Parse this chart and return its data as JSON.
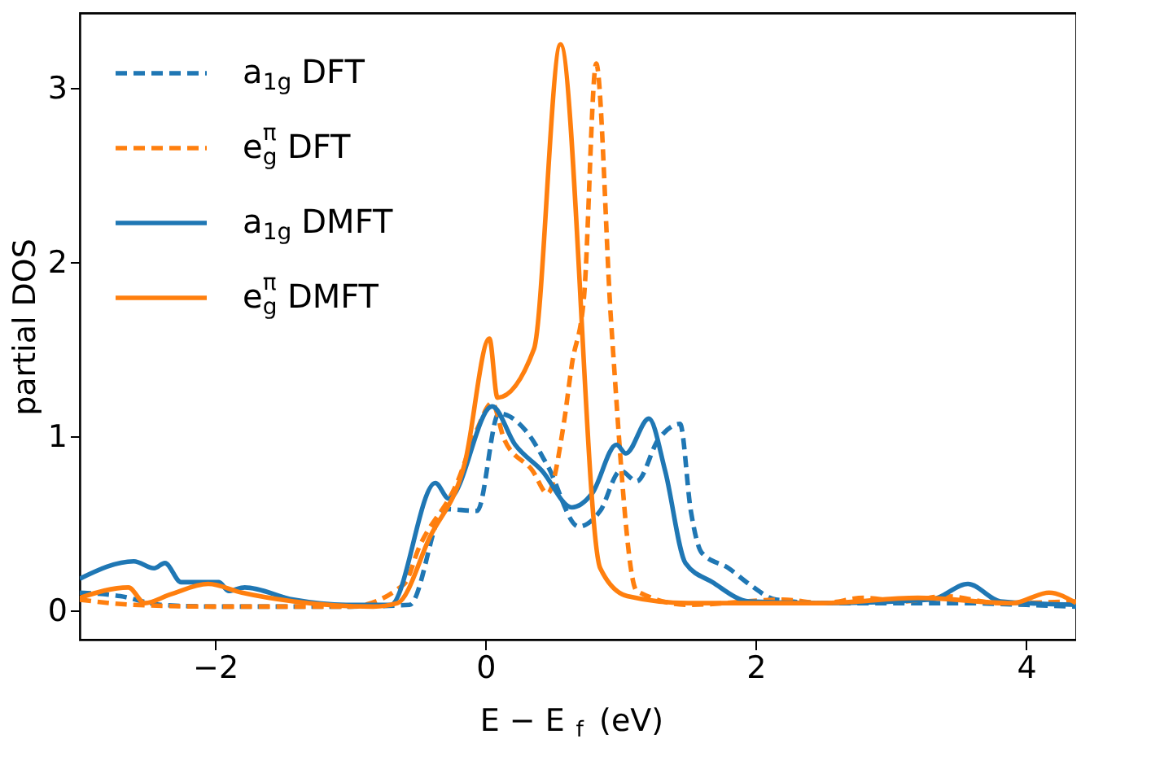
{
  "chart_data": {
    "type": "line",
    "xlabel": "E − E$_{f}$ (eV)",
    "ylabel": "partial DOS",
    "xlim": [
      -3.0,
      4.37
    ],
    "xticks": [
      -2,
      0,
      2,
      4
    ],
    "ylim": [
      -0.17,
      3.43
    ],
    "yticks": [
      0,
      1,
      2,
      3
    ],
    "grid": false,
    "legend": "top left",
    "series": [
      {
        "name": "a$_{1g}$ DFT",
        "color": "#1f77b4",
        "line_style": "dashed",
        "x": [
          -3.0,
          -2.7,
          -2.4,
          -2.0,
          -1.5,
          -1.0,
          -0.56,
          -0.3,
          -0.06,
          0.1,
          0.3,
          0.46,
          0.69,
          0.85,
          1.0,
          1.12,
          1.28,
          1.44,
          1.52,
          1.6,
          1.8,
          1.95,
          2.15,
          2.5,
          3.0,
          3.5,
          4.0,
          4.37
        ],
        "values": [
          0.1,
          0.08,
          0.03,
          0.02,
          0.02,
          0.02,
          0.03,
          0.58,
          0.57,
          1.13,
          1.03,
          0.83,
          0.48,
          0.57,
          0.8,
          0.74,
          0.98,
          1.07,
          0.57,
          0.33,
          0.24,
          0.15,
          0.06,
          0.04,
          0.04,
          0.04,
          0.03,
          0.02
        ]
      },
      {
        "name": "e$_{g}$$^{π}$ DFT",
        "color": "#ff7f0e",
        "line_style": "dashed",
        "x": [
          -3.0,
          -2.6,
          -2.0,
          -1.5,
          -1.0,
          -0.6,
          -0.49,
          -0.21,
          -0.06,
          0.05,
          0.14,
          0.35,
          0.46,
          0.58,
          0.64,
          0.73,
          0.82,
          0.93,
          1.12,
          1.5,
          2.2,
          2.5,
          2.8,
          3.1,
          3.4,
          3.8,
          4.37
        ],
        "values": [
          0.06,
          0.03,
          0.02,
          0.02,
          0.02,
          0.15,
          0.36,
          0.73,
          1.04,
          1.19,
          0.98,
          0.8,
          0.67,
          1.07,
          1.41,
          1.8,
          3.14,
          1.66,
          0.11,
          0.03,
          0.06,
          0.04,
          0.07,
          0.05,
          0.08,
          0.04,
          0.05
        ]
      },
      {
        "name": "a$_{1g}$ DMFT",
        "color": "#1f77b4",
        "line_style": "solid",
        "x": [
          -3.0,
          -2.6,
          -2.45,
          -2.37,
          -2.25,
          -1.97,
          -1.9,
          -1.78,
          -1.42,
          -1.03,
          -0.7,
          -0.37,
          -0.27,
          0.05,
          0.22,
          0.42,
          0.64,
          0.79,
          0.97,
          1.04,
          1.21,
          1.33,
          1.48,
          1.68,
          1.95,
          2.5,
          3.3,
          3.57,
          3.81,
          4.37
        ],
        "values": [
          0.18,
          0.28,
          0.24,
          0.27,
          0.16,
          0.16,
          0.11,
          0.13,
          0.06,
          0.03,
          0.03,
          0.73,
          0.64,
          1.17,
          0.95,
          0.8,
          0.59,
          0.67,
          0.95,
          0.9,
          1.1,
          0.8,
          0.27,
          0.16,
          0.05,
          0.04,
          0.06,
          0.15,
          0.05,
          0.03
        ]
      },
      {
        "name": "e$_{g}$$^{π}$ DMFT",
        "color": "#ff7f0e",
        "line_style": "solid",
        "x": [
          -3.0,
          -2.64,
          -2.52,
          -2.33,
          -2.05,
          -1.8,
          -1.42,
          -0.83,
          -0.65,
          -0.41,
          -0.15,
          0.03,
          0.09,
          0.36,
          0.556,
          0.85,
          1.05,
          1.5,
          2.5,
          3.2,
          3.9,
          4.17,
          4.37
        ],
        "values": [
          0.07,
          0.13,
          0.04,
          0.09,
          0.15,
          0.1,
          0.05,
          0.02,
          0.04,
          0.42,
          0.85,
          1.56,
          1.22,
          1.5,
          3.25,
          0.24,
          0.08,
          0.04,
          0.04,
          0.07,
          0.04,
          0.1,
          0.04
        ]
      }
    ]
  }
}
